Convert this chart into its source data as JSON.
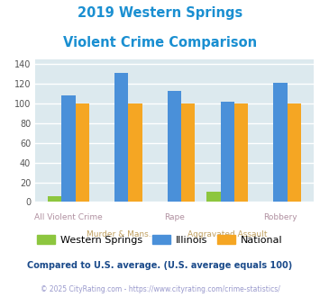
{
  "title_line1": "2019 Western Springs",
  "title_line2": "Violent Crime Comparison",
  "title_color": "#1a8fd1",
  "categories": [
    "All Violent Crime",
    "Murder & Mans...",
    "Rape",
    "Aggravated Assault",
    "Robbery"
  ],
  "western_springs": [
    6,
    0,
    0,
    10,
    0
  ],
  "illinois": [
    108,
    131,
    113,
    102,
    121
  ],
  "national": [
    100,
    100,
    100,
    100,
    100
  ],
  "ws_color": "#8dc63f",
  "il_color": "#4a90d9",
  "nat_color": "#f5a623",
  "ylim": [
    0,
    145
  ],
  "yticks": [
    0,
    20,
    40,
    60,
    80,
    100,
    120,
    140
  ],
  "bg_color": "#dce9ee",
  "grid_color": "#ffffff",
  "legend_ws_label": "Western Springs",
  "legend_il_label": "Illinois",
  "legend_nat_label": "National",
  "top_label_color": "#b090a0",
  "bottom_label_color": "#c0a060",
  "footnote1": "Compared to U.S. average. (U.S. average equals 100)",
  "footnote2": "© 2025 CityRating.com - https://www.cityrating.com/crime-statistics/",
  "footnote1_color": "#1a4a8a",
  "footnote2_color": "#9999cc",
  "top_cats": {
    "0": "All Violent Crime",
    "2": "Rape",
    "4": "Robbery"
  },
  "bottom_cats": {
    "1": "Murder & Mans...",
    "3": "Aggravated Assault"
  }
}
